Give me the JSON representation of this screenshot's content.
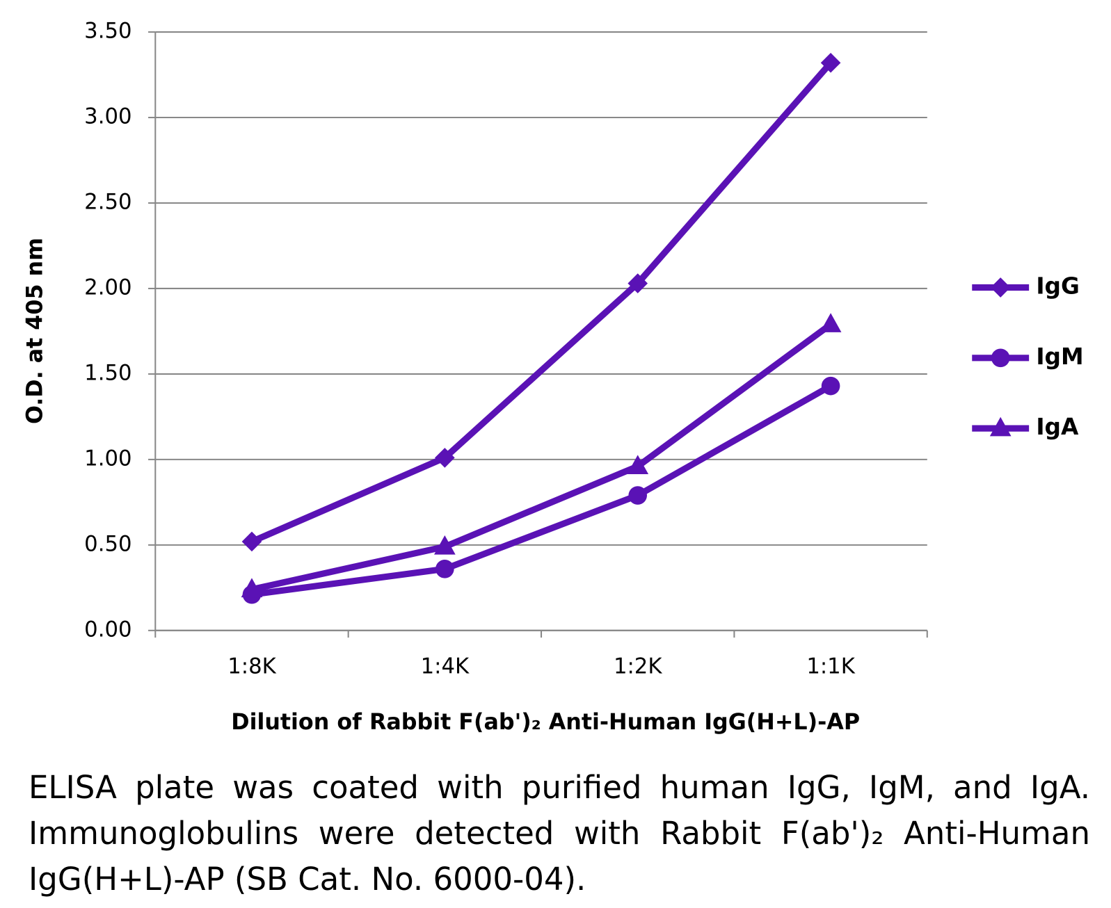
{
  "chart_data": {
    "type": "line",
    "xlabel": "Dilution of Rabbit F(ab')₂ Anti-Human IgG(H+L)-AP",
    "ylabel": "O.D. at 405 nm",
    "categories": [
      "1:8K",
      "1:4K",
      "1:2K",
      "1:1K"
    ],
    "series": [
      {
        "name": "IgG",
        "color": "#5a12b5",
        "marker": "diamond",
        "values": [
          0.52,
          1.01,
          2.03,
          3.32
        ]
      },
      {
        "name": "IgM",
        "color": "#5a12b5",
        "marker": "circle",
        "values": [
          0.21,
          0.36,
          0.79,
          1.43
        ]
      },
      {
        "name": "IgA",
        "color": "#5a12b5",
        "marker": "triangle",
        "values": [
          0.24,
          0.49,
          0.96,
          1.79
        ]
      }
    ],
    "ylim": [
      0,
      3.5
    ],
    "yticks": [
      {
        "value": 0,
        "label": "0.00"
      },
      {
        "value": 0.5,
        "label": "0.50"
      },
      {
        "value": 1,
        "label": "1.00"
      },
      {
        "value": 1.5,
        "label": "1.50"
      },
      {
        "value": 2,
        "label": "2.00"
      },
      {
        "value": 2.5,
        "label": "2.50"
      },
      {
        "value": 3,
        "label": "3.00"
      },
      {
        "value": 3.5,
        "label": "3.50"
      }
    ],
    "grid": true,
    "legend": "right"
  },
  "caption": "ELISA plate was coated with purified human IgG, IgM, and IgA. Immunoglobulins were detected with Rabbit F(ab')₂ Anti-Human IgG(H+L)-AP (SB Cat. No. 6000-04)."
}
